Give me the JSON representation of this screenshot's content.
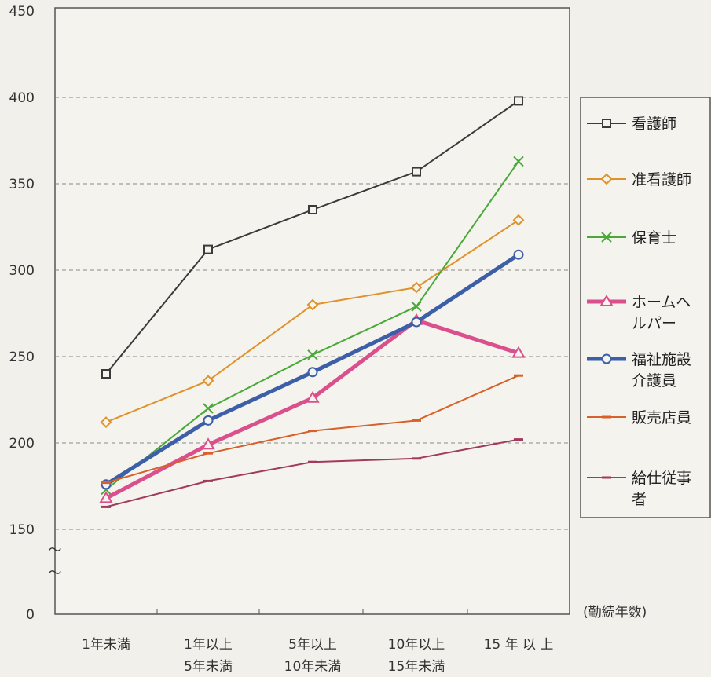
{
  "chart_data": {
    "type": "line",
    "title": "",
    "xlabel": "(勤続年数)",
    "ylabel": "",
    "ylim": [
      0,
      450
    ],
    "y_ticks": [
      "0",
      "150",
      "200",
      "250",
      "300",
      "350",
      "400",
      "450"
    ],
    "axis_break": "〜",
    "grid": "dashed horizontal",
    "legend_position": "right",
    "categories": [
      [
        "1年未満"
      ],
      [
        "1年以上",
        "5年未満"
      ],
      [
        "5年以上",
        "10年未満"
      ],
      [
        "10年以上",
        "15年未満"
      ],
      [
        "15 年 以 上"
      ]
    ],
    "series": [
      {
        "name": "看護師",
        "label_lines": [
          "看護師"
        ],
        "color": "#3a3a3a",
        "marker": "square",
        "width": 2,
        "values": [
          240,
          312,
          335,
          357,
          398
        ]
      },
      {
        "name": "准看護師",
        "label_lines": [
          "准看護師"
        ],
        "color": "#e0922a",
        "marker": "diamond",
        "width": 2,
        "values": [
          212,
          236,
          280,
          290,
          329
        ]
      },
      {
        "name": "保育士",
        "label_lines": [
          "保育士"
        ],
        "color": "#4aa83a",
        "marker": "x",
        "width": 2,
        "values": [
          173,
          220,
          251,
          279,
          363
        ]
      },
      {
        "name": "ホームヘルパー",
        "label_lines": [
          "ホームヘ",
          "ルパー"
        ],
        "color": "#d9508c",
        "marker": "triangle",
        "width": 5,
        "values": [
          168,
          199,
          226,
          271,
          252
        ]
      },
      {
        "name": "福祉施設介護員",
        "label_lines": [
          "福祉施設",
          "介護員"
        ],
        "color": "#3c5fa8",
        "marker": "circle",
        "width": 5,
        "values": [
          176,
          213,
          241,
          270,
          309
        ]
      },
      {
        "name": "販売店員",
        "label_lines": [
          "販売店員"
        ],
        "color": "#d8602a",
        "marker": "dash",
        "width": 2,
        "values": [
          177,
          194,
          207,
          213,
          239
        ]
      },
      {
        "name": "給仕従事者",
        "label_lines": [
          "給仕従事",
          "者"
        ],
        "color": "#a23a5c",
        "marker": "dash",
        "width": 2,
        "values": [
          163,
          178,
          189,
          191,
          202
        ]
      }
    ]
  }
}
